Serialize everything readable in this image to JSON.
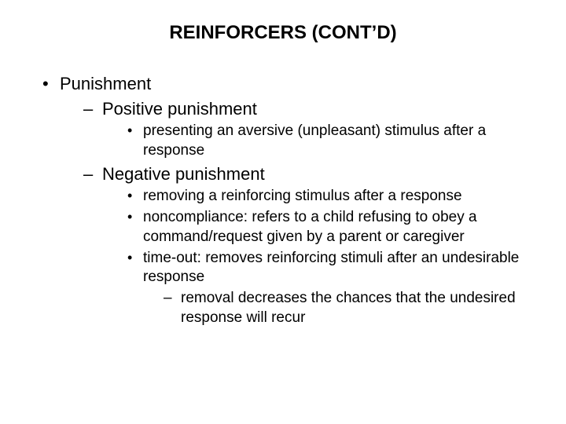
{
  "title": "REINFORCERS (CONT’D)",
  "colors": {
    "background": "#ffffff",
    "text": "#000000"
  },
  "typography": {
    "title_fontsize": 24,
    "l1_fontsize": 22,
    "l2_fontsize": 22,
    "l3_fontsize": 19,
    "l4_fontsize": 19,
    "font_family": "Arial"
  },
  "bullets": {
    "l1": "•",
    "l2": "–",
    "l3": "•",
    "l4": "–"
  },
  "content": {
    "l1_0": "Punishment",
    "l2_0": "Positive punishment",
    "l3_0": "presenting an aversive (unpleasant) stimulus after a response",
    "l2_1": "Negative punishment",
    "l3_1": "removing a reinforcing stimulus after a response",
    "l3_2": "noncompliance: refers to a child refusing to obey a command/request given by a parent or caregiver",
    "l3_3": "time-out: removes reinforcing stimuli after an undesirable response",
    "l4_0": "removal decreases the chances that the undesired response will recur"
  }
}
